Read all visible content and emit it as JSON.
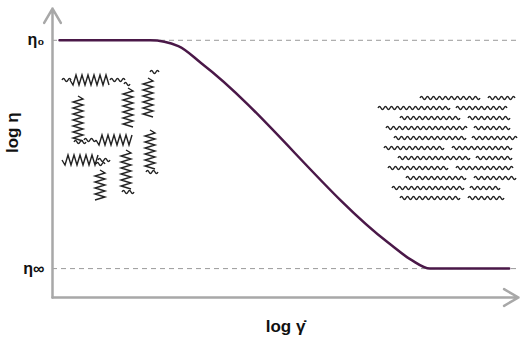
{
  "chart_data": {
    "type": "line",
    "x_label": "log γ̇",
    "y_label": "log η",
    "x": [
      0.15,
      2.1,
      2.7,
      3.2,
      7.2,
      7.7,
      8.1,
      9.8
    ],
    "values": [
      8.9,
      8.9,
      8.7,
      8.1,
      1.9,
      1.3,
      1.0,
      1.0
    ],
    "color": "#4a1848",
    "line_style": "solid",
    "xlim": [
      0,
      10
    ],
    "ylim": [
      0,
      10
    ],
    "xticks": [],
    "yticks": [
      {
        "value": 8.9,
        "label": "η₀"
      },
      {
        "value": 1.0,
        "label": "η∞"
      }
    ],
    "grid": true,
    "tick_labels": "y"
  }
}
